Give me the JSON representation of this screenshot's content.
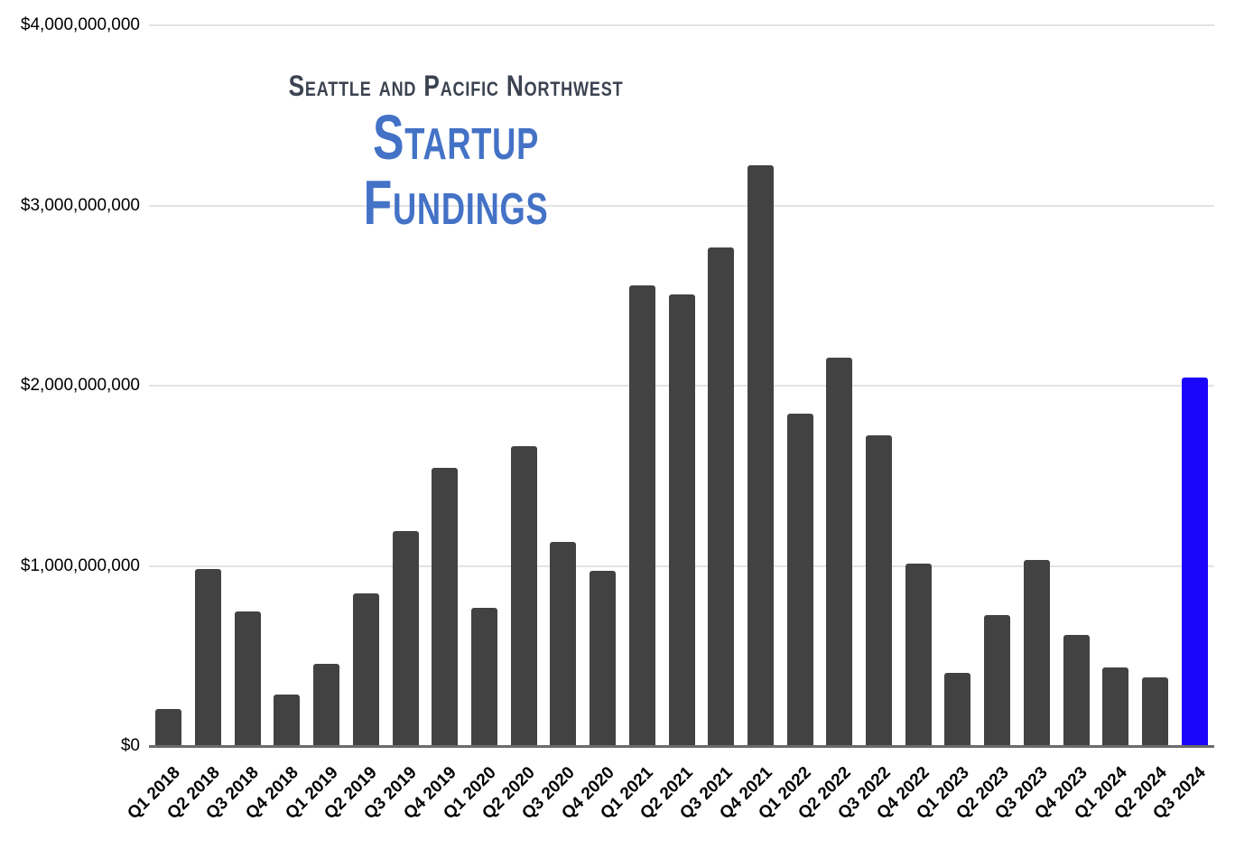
{
  "chart_data": {
    "type": "bar",
    "subtitle": "Seattle and Pacific Northwest",
    "title": "Startup Fundings",
    "categories": [
      "Q1 2018",
      "Q2 2018",
      "Q3 2018",
      "Q4 2018",
      "Q1 2019",
      "Q2 2019",
      "Q3 2019",
      "Q4 2019",
      "Q1 2020",
      "Q2 2020",
      "Q3 2020",
      "Q4 2020",
      "Q1 2021",
      "Q2 2021",
      "Q3 2021",
      "Q4 2021",
      "Q1 2022",
      "Q2 2022",
      "Q3 2022",
      "Q4 2022",
      "Q1 2023",
      "Q2 2023",
      "Q3 2023",
      "Q4 2023",
      "Q1 2024",
      "Q2 2024",
      "Q3 2024"
    ],
    "values": [
      200000000,
      980000000,
      740000000,
      280000000,
      450000000,
      840000000,
      1190000000,
      1540000000,
      760000000,
      1660000000,
      1130000000,
      970000000,
      2550000000,
      2500000000,
      2760000000,
      3220000000,
      1840000000,
      2150000000,
      1720000000,
      1010000000,
      400000000,
      720000000,
      1030000000,
      610000000,
      430000000,
      375000000,
      2040000000
    ],
    "ylim": [
      0,
      4000000000
    ],
    "y_ticks": [
      {
        "value": 4000000000,
        "label": "$4,000,000,000"
      },
      {
        "value": 3000000000,
        "label": "$3,000,000,000"
      },
      {
        "value": 2000000000,
        "label": "$2,000,000,000"
      },
      {
        "value": 1000000000,
        "label": "$1,000,000,000"
      },
      {
        "value": 0,
        "label": "$0"
      }
    ],
    "grid": true,
    "legend": "none",
    "xlabel": "",
    "ylabel": "",
    "colors": {
      "bar": "#424242",
      "highlight_bar": "#1b05fb",
      "gridline": "#e3e3e3",
      "axis_line": "#6b6b6b",
      "tick_text": "#000000",
      "subtitle_text": "#3b4351",
      "title_text": "#4372c6"
    },
    "highlight_index": 26
  }
}
